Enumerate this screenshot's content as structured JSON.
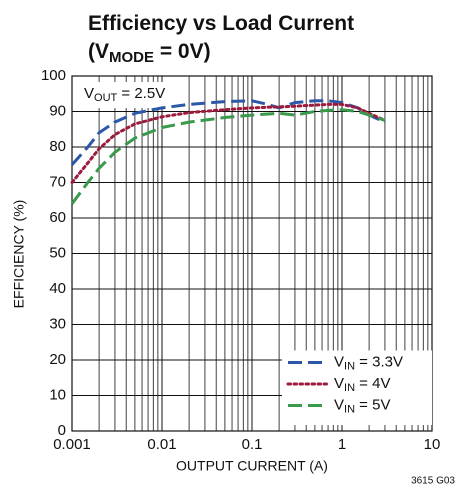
{
  "chart_data": {
    "type": "line",
    "title": "Efficiency vs Load Current",
    "subtitle": {
      "pre": "(V",
      "sub": "MODE",
      "post": " = 0V)"
    },
    "annotation": {
      "pre": "V",
      "sub": "OUT",
      "post": " = 2.5V"
    },
    "xlabel": "OUTPUT CURRENT (A)",
    "ylabel": "EFFICIENCY (%)",
    "footnote": "3615 G03",
    "xscale": "log",
    "xlim": [
      0.001,
      10
    ],
    "xticks": [
      0.001,
      0.01,
      0.1,
      1,
      10
    ],
    "ylim": [
      0,
      100
    ],
    "yticks": [
      0,
      10,
      20,
      30,
      40,
      50,
      60,
      70,
      80,
      90,
      100
    ],
    "grid": true,
    "legend": "lower right",
    "x": [
      0.001,
      0.0015,
      0.002,
      0.003,
      0.005,
      0.01,
      0.02,
      0.05,
      0.1,
      0.15,
      0.2,
      0.3,
      0.5,
      0.7,
      1,
      1.5,
      2,
      3
    ],
    "series": [
      {
        "name": {
          "pre": "V",
          "sub": "IN",
          "post": " = 3.3V"
        },
        "color": "#2b58a8",
        "dash": "dashed",
        "values": [
          75,
          80,
          84,
          87,
          89.5,
          91,
          92,
          92.8,
          93,
          92,
          91,
          92.5,
          93,
          93,
          92.5,
          91,
          89,
          87
        ]
      },
      {
        "name": {
          "pre": "V",
          "sub": "IN",
          "post": " = 4V"
        },
        "color": "#9c1b3c",
        "dash": "dotted",
        "values": [
          70,
          75.5,
          79.5,
          83.5,
          86.5,
          88.5,
          89.7,
          90.5,
          91,
          91.2,
          91.3,
          91.5,
          91.8,
          92,
          92,
          91,
          89.5,
          87.5
        ]
      },
      {
        "name": {
          "pre": "V",
          "sub": "IN",
          "post": " = 5V"
        },
        "color": "#3a9a4c",
        "dash": "dashed",
        "values": [
          64,
          70,
          74,
          78.5,
          82.5,
          85.5,
          87,
          88.3,
          89,
          89.3,
          89.5,
          89,
          90,
          90.3,
          90.5,
          90,
          89,
          87.5
        ]
      }
    ]
  }
}
